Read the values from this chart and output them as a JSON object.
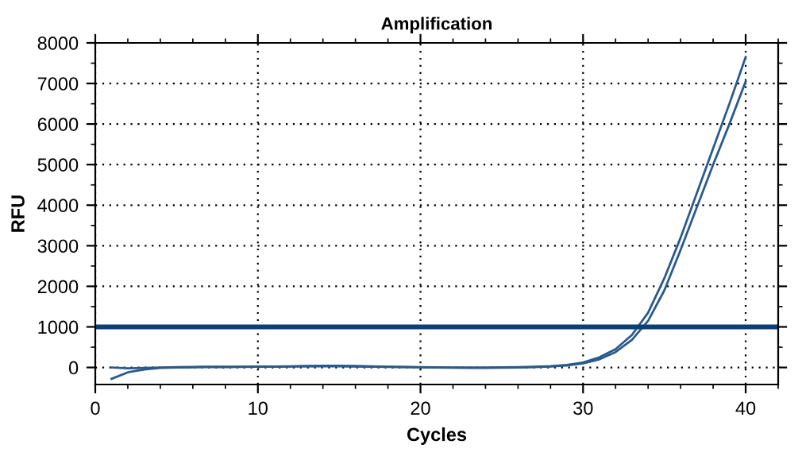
{
  "chart_data": {
    "type": "line",
    "title": "Amplification",
    "xlabel": "Cycles",
    "ylabel": "RFU",
    "x": [
      1,
      2,
      3,
      4,
      5,
      6,
      7,
      8,
      9,
      10,
      11,
      12,
      13,
      14,
      15,
      16,
      17,
      18,
      19,
      20,
      21,
      22,
      23,
      24,
      25,
      26,
      27,
      28,
      29,
      30,
      31,
      32,
      33,
      34,
      35,
      36,
      37,
      38,
      39,
      40
    ],
    "series": [
      {
        "color": "#2a5a8c",
        "values": [
          0,
          -20,
          -10,
          0,
          10,
          15,
          20,
          20,
          20,
          25,
          25,
          30,
          35,
          40,
          40,
          35,
          30,
          20,
          15,
          10,
          5,
          0,
          0,
          0,
          5,
          10,
          20,
          35,
          60,
          120,
          250,
          450,
          800,
          1350,
          2200,
          3200,
          4300,
          5400,
          6500,
          7650
        ]
      },
      {
        "color": "#2a5a8c",
        "values": [
          -280,
          -120,
          -50,
          -10,
          0,
          5,
          10,
          10,
          15,
          20,
          20,
          25,
          30,
          30,
          30,
          25,
          20,
          15,
          10,
          5,
          0,
          -5,
          -10,
          -10,
          -5,
          0,
          10,
          25,
          50,
          100,
          200,
          380,
          680,
          1150,
          1900,
          2900,
          3950,
          5000,
          6000,
          7050
        ]
      }
    ],
    "ref_lines": [
      {
        "axis": "y",
        "value": 1000,
        "color": "#0b3f78"
      }
    ],
    "xlim": [
      0,
      42
    ],
    "ylim": [
      -420,
      8000
    ],
    "xticks": [
      0,
      10,
      20,
      30,
      40
    ],
    "yticks": [
      0,
      1000,
      2000,
      3000,
      4000,
      5000,
      6000,
      7000,
      8000
    ],
    "grid": true,
    "marker": "none",
    "line_style": "solid",
    "legend": false
  }
}
